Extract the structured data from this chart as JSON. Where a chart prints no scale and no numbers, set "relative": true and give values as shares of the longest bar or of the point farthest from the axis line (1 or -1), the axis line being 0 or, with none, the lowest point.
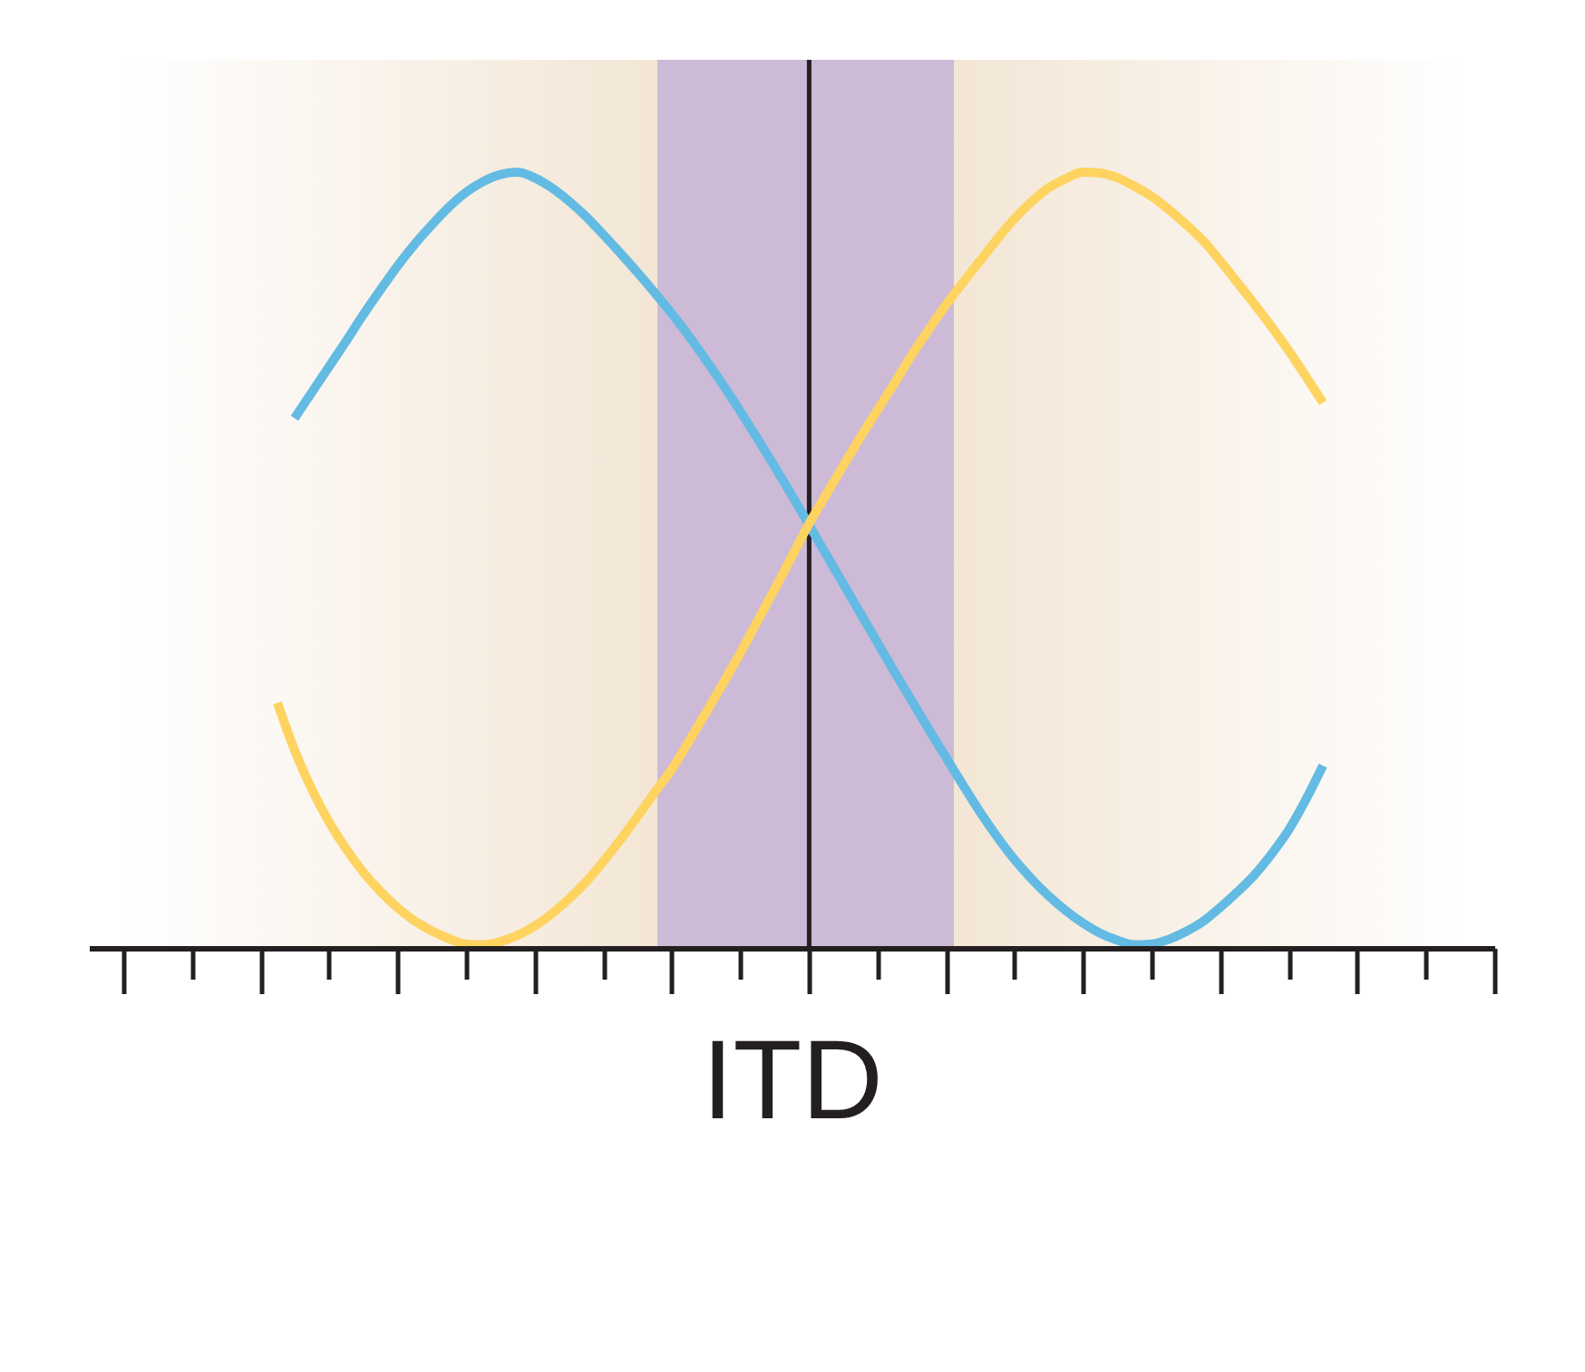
{
  "chart_data": {
    "type": "line",
    "xlabel": "ITD",
    "relative": true,
    "categories": [
      null,
      null,
      null,
      null,
      null,
      null,
      null,
      null,
      null,
      null,
      null,
      null,
      null,
      null,
      null,
      null,
      null,
      null,
      null,
      null,
      null,
      null,
      null,
      null,
      null,
      null,
      null,
      null,
      null,
      null,
      null,
      null,
      null,
      null,
      null,
      null,
      null,
      null,
      null,
      null,
      null,
      null,
      null,
      null,
      null,
      null,
      null,
      null,
      null,
      null,
      null,
      null,
      null,
      null,
      null,
      null,
      null,
      null,
      null,
      null,
      null,
      null,
      null,
      null,
      null,
      null,
      null,
      null,
      null,
      null,
      null,
      null,
      null,
      null,
      null,
      null,
      null,
      null,
      null,
      null,
      null,
      null,
      null
    ],
    "series": [
      {
        "color": "#63bbe3",
        "values": [
          null,
          null,
          null,
          null,
          null,
          null,
          null,
          null,
          null,
          null,
          null,
          null,
          0.683,
          0.716,
          0.749,
          0.782,
          0.816,
          0.848,
          0.879,
          0.907,
          0.932,
          0.955,
          0.974,
          0.988,
          0.997,
          1.0,
          0.993,
          0.98,
          0.963,
          0.943,
          0.92,
          0.896,
          0.871,
          0.845,
          0.818,
          0.789,
          0.758,
          0.726,
          0.692,
          0.657,
          0.621,
          0.584,
          0.546,
          0.508,
          0.47,
          0.432,
          0.394,
          0.356,
          0.319,
          0.282,
          0.246,
          0.21,
          0.175,
          0.143,
          0.114,
          0.089,
          0.067,
          0.048,
          0.032,
          0.019,
          0.01,
          0.004,
          0.005,
          0.011,
          0.021,
          0.034,
          0.052,
          0.072,
          0.094,
          0.121,
          0.152,
          0.191,
          0.235,
          null,
          null,
          null,
          null,
          null,
          null,
          null,
          null,
          null,
          null
        ]
      },
      {
        "color": "#fed35f",
        "values": [
          null,
          null,
          null,
          null,
          null,
          null,
          null,
          null,
          null,
          null,
          null,
          0.316,
          0.255,
          0.205,
          0.163,
          0.128,
          0.098,
          0.073,
          0.052,
          0.035,
          0.022,
          0.012,
          0.005,
          0.004,
          0.008,
          0.016,
          0.028,
          0.044,
          0.063,
          0.085,
          0.111,
          0.139,
          0.169,
          0.2,
          0.23,
          0.266,
          0.303,
          0.341,
          0.38,
          0.421,
          0.462,
          0.504,
          0.546,
          0.584,
          0.621,
          0.658,
          0.693,
          0.728,
          0.764,
          0.797,
          0.829,
          0.858,
          0.886,
          0.914,
          0.94,
          0.962,
          0.98,
          0.992,
          1.0,
          0.999,
          0.993,
          0.982,
          0.969,
          0.952,
          0.933,
          0.912,
          0.886,
          0.858,
          0.83,
          0.801,
          0.77,
          0.737,
          0.703,
          null,
          null,
          null,
          null,
          null,
          null,
          null,
          null,
          null,
          null
        ]
      }
    ]
  }
}
